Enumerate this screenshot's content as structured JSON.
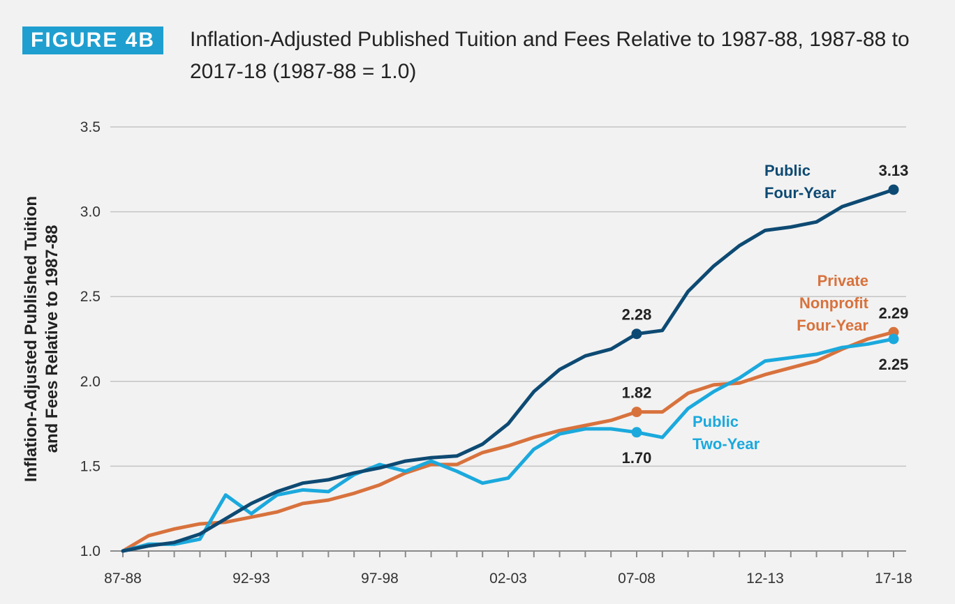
{
  "figure": {
    "tag": "FIGURE 4B",
    "title": "Inflation-Adjusted Published Tuition and Fees Relative to 1987-88, 1987-88 to 2017-18 (1987-88 = 1.0)"
  },
  "chart_data": {
    "type": "line",
    "title": "Inflation-Adjusted Published Tuition and Fees Relative to 1987-88, 1987-88 to 2017-18 (1987-88 = 1.0)",
    "xlabel": "",
    "ylabel_lines": [
      "Inflation-Adjusted Published Tuition",
      "and Fees Relative to 1987-88"
    ],
    "ylim": [
      1.0,
      3.5
    ],
    "yticks": [
      "1.0",
      "1.5",
      "2.0",
      "2.5",
      "3.0",
      "3.5"
    ],
    "ytick_values": [
      1.0,
      1.5,
      2.0,
      2.5,
      3.0,
      3.5
    ],
    "grid": true,
    "x": [
      "87-88",
      "88-89",
      "89-90",
      "90-91",
      "91-92",
      "92-93",
      "93-94",
      "94-95",
      "95-96",
      "96-97",
      "97-98",
      "98-99",
      "99-00",
      "00-01",
      "01-02",
      "02-03",
      "03-04",
      "04-05",
      "05-06",
      "06-07",
      "07-08",
      "08-09",
      "09-10",
      "10-11",
      "11-12",
      "12-13",
      "13-14",
      "14-15",
      "15-16",
      "16-17",
      "17-18"
    ],
    "xtick_labels": [
      "87-88",
      "92-93",
      "97-98",
      "02-03",
      "07-08",
      "12-13",
      "17-18"
    ],
    "xtick_label_indices": [
      0,
      5,
      10,
      15,
      20,
      25,
      30
    ],
    "series": [
      {
        "name": "Public Four-Year",
        "color": "#0d4a73",
        "values": [
          1.0,
          1.03,
          1.05,
          1.1,
          1.19,
          1.28,
          1.35,
          1.4,
          1.42,
          1.46,
          1.49,
          1.53,
          1.55,
          1.56,
          1.63,
          1.75,
          1.94,
          2.07,
          2.15,
          2.19,
          2.28,
          2.3,
          2.53,
          2.68,
          2.8,
          2.89,
          2.91,
          2.94,
          3.03,
          3.08,
          3.13
        ]
      },
      {
        "name": "Private Nonprofit Four-Year",
        "color": "#d8723d",
        "values": [
          1.0,
          1.09,
          1.13,
          1.16,
          1.17,
          1.2,
          1.23,
          1.28,
          1.3,
          1.34,
          1.39,
          1.46,
          1.51,
          1.51,
          1.58,
          1.62,
          1.67,
          1.71,
          1.74,
          1.77,
          1.82,
          1.82,
          1.93,
          1.98,
          1.99,
          2.04,
          2.08,
          2.12,
          2.19,
          2.25,
          2.29
        ]
      },
      {
        "name": "Public Two-Year",
        "color": "#1ba9dd",
        "values": [
          1.0,
          1.04,
          1.04,
          1.07,
          1.33,
          1.22,
          1.33,
          1.36,
          1.35,
          1.45,
          1.51,
          1.47,
          1.53,
          1.47,
          1.4,
          1.43,
          1.6,
          1.69,
          1.72,
          1.72,
          1.7,
          1.67,
          1.84,
          1.94,
          2.02,
          2.12,
          2.14,
          2.16,
          2.2,
          2.22,
          2.25
        ]
      }
    ],
    "annotations": [
      {
        "series": 0,
        "index": 20,
        "text": "2.28"
      },
      {
        "series": 0,
        "index": 30,
        "text": "3.13"
      },
      {
        "series": 1,
        "index": 20,
        "text": "1.82"
      },
      {
        "series": 1,
        "index": 30,
        "text": "2.29"
      },
      {
        "series": 2,
        "index": 20,
        "text": "1.70"
      },
      {
        "series": 2,
        "index": 30,
        "text": "2.25"
      }
    ],
    "series_labels": [
      {
        "series": 0,
        "lines": [
          "Public",
          "Four-Year"
        ]
      },
      {
        "series": 1,
        "lines": [
          "Private",
          "Nonprofit",
          "Four-Year"
        ]
      },
      {
        "series": 2,
        "lines": [
          "Public",
          "Two-Year"
        ]
      }
    ],
    "grid_color": "#c4c4c4",
    "axis_color": "#8a8a8a"
  }
}
